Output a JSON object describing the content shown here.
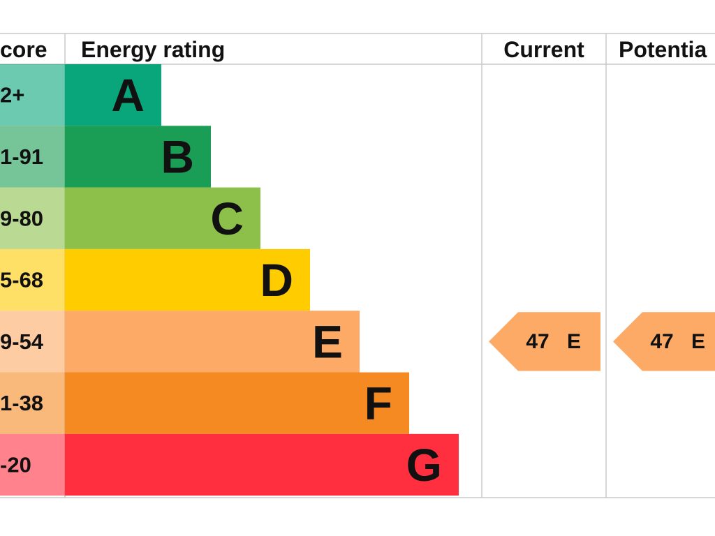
{
  "header": {
    "score": "core",
    "rating": "Energy rating",
    "current": "Current",
    "potential": "Potentia"
  },
  "bands": [
    {
      "score": "2+",
      "letter": "A",
      "color": "#0aa67b"
    },
    {
      "score": "1-91",
      "letter": "B",
      "color": "#1a9e55"
    },
    {
      "score": "9-80",
      "letter": "C",
      "color": "#8cc04a"
    },
    {
      "score": "5-68",
      "letter": "D",
      "color": "#ffcc00"
    },
    {
      "score": "9-54",
      "letter": "E",
      "color": "#fcaa65"
    },
    {
      "score": "1-38",
      "letter": "F",
      "color": "#f58a23"
    },
    {
      "score": "-20",
      "letter": "G",
      "color": "#ff2f3f"
    }
  ],
  "current": {
    "score": 47,
    "band": "E"
  },
  "potential": {
    "score": 47,
    "band": "E"
  }
}
